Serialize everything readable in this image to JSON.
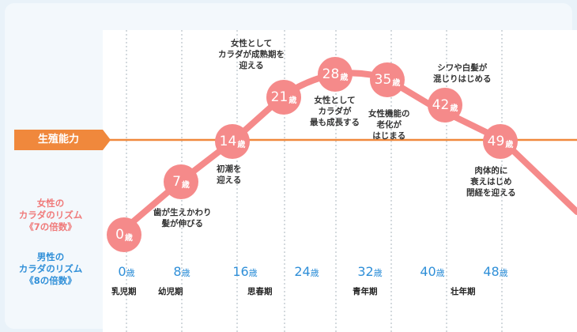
{
  "fertility_label": "生殖能力",
  "female_label": [
    "女性の",
    "カラダのリズム",
    "《7の倍数》"
  ],
  "male_label": [
    "男性の",
    "カラダのリズム",
    "《8の倍数》"
  ],
  "female_ages": [
    {
      "num": "0",
      "unit": "歳"
    },
    {
      "num": "7",
      "unit": "歳"
    },
    {
      "num": "14",
      "unit": "歳"
    },
    {
      "num": "21",
      "unit": "歳"
    },
    {
      "num": "28",
      "unit": "歳"
    },
    {
      "num": "35",
      "unit": "歳"
    },
    {
      "num": "42",
      "unit": "歳"
    },
    {
      "num": "49",
      "unit": "歳"
    }
  ],
  "male_ages": [
    {
      "num": "0",
      "unit": "歳"
    },
    {
      "num": "8",
      "unit": "歳"
    },
    {
      "num": "16",
      "unit": "歳"
    },
    {
      "num": "24",
      "unit": "歳"
    },
    {
      "num": "32",
      "unit": "歳"
    },
    {
      "num": "40",
      "unit": "歳"
    },
    {
      "num": "48",
      "unit": "歳"
    }
  ],
  "notes": {
    "age7": [
      "歯が生えかわり",
      "髪が伸びる"
    ],
    "age14": [
      "初潮を",
      "迎える"
    ],
    "age21": [
      "女性として",
      "カラダが成熟期を",
      "迎える"
    ],
    "age28": [
      "女性として",
      "カラダが",
      "最も成長する"
    ],
    "age35": [
      "女性機能の",
      "老化が",
      "はじまる"
    ],
    "age42": [
      "シワや白髪が",
      "混じりはじめる"
    ],
    "age49": [
      "肉体的に",
      "衰えはじめ",
      "閉経を迎える"
    ]
  },
  "stages": [
    "乳児期",
    "幼児期",
    "思春期",
    "青年期",
    "壮年期"
  ],
  "colors": {
    "female": "#f07a7a",
    "female_circle": "#f58a8a",
    "male": "#2f8fd8",
    "fertility": "#f0883c"
  }
}
